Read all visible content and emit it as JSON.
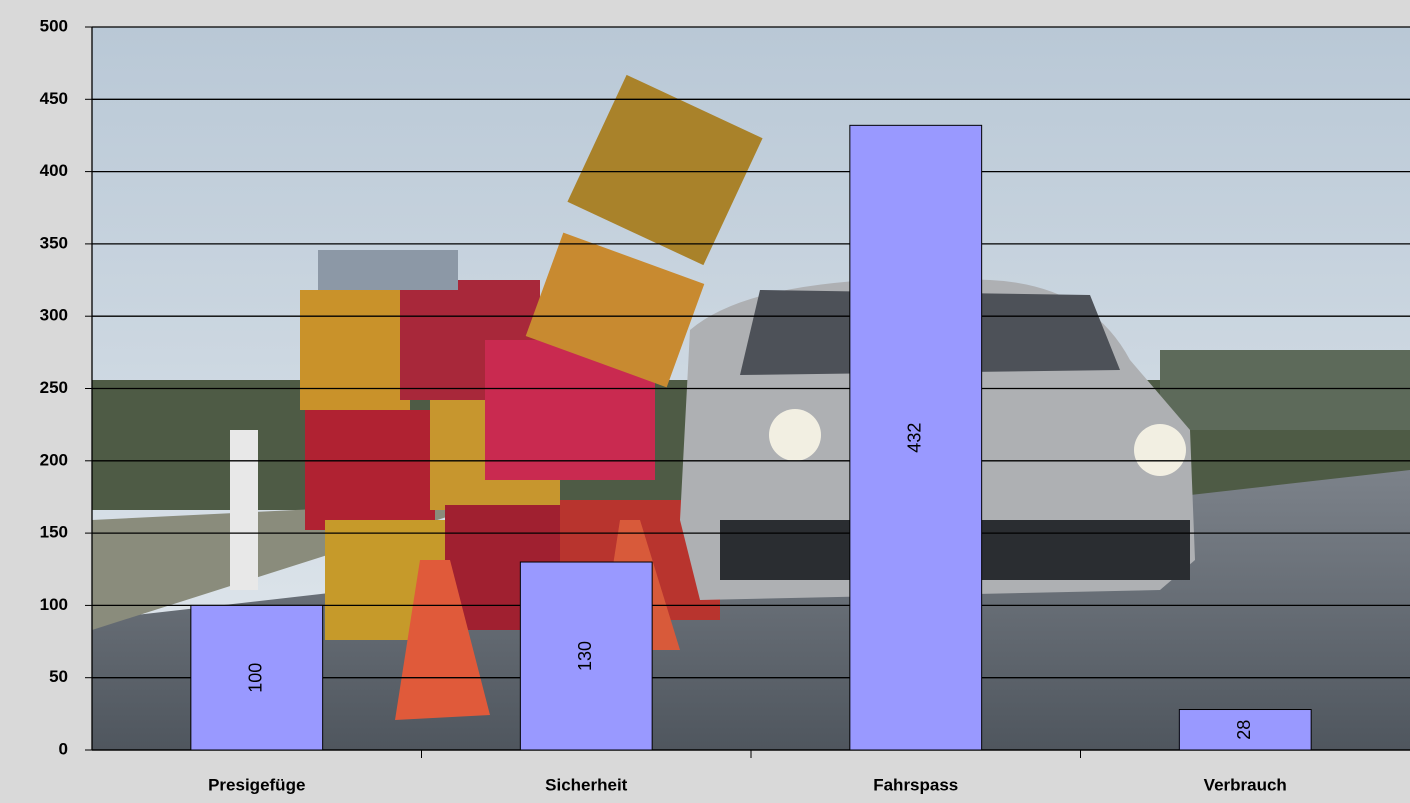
{
  "chart_data": {
    "type": "bar",
    "categories": [
      "Presigefüge",
      "Sicherheit",
      "Fahrspass",
      "Verbrauch"
    ],
    "values": [
      100,
      130,
      432,
      28
    ],
    "color": "#9999ff",
    "ylim": [
      0,
      500
    ],
    "yticks": [
      0,
      50,
      100,
      150,
      200,
      250,
      300,
      350,
      400,
      450,
      500
    ],
    "grid": true
  }
}
